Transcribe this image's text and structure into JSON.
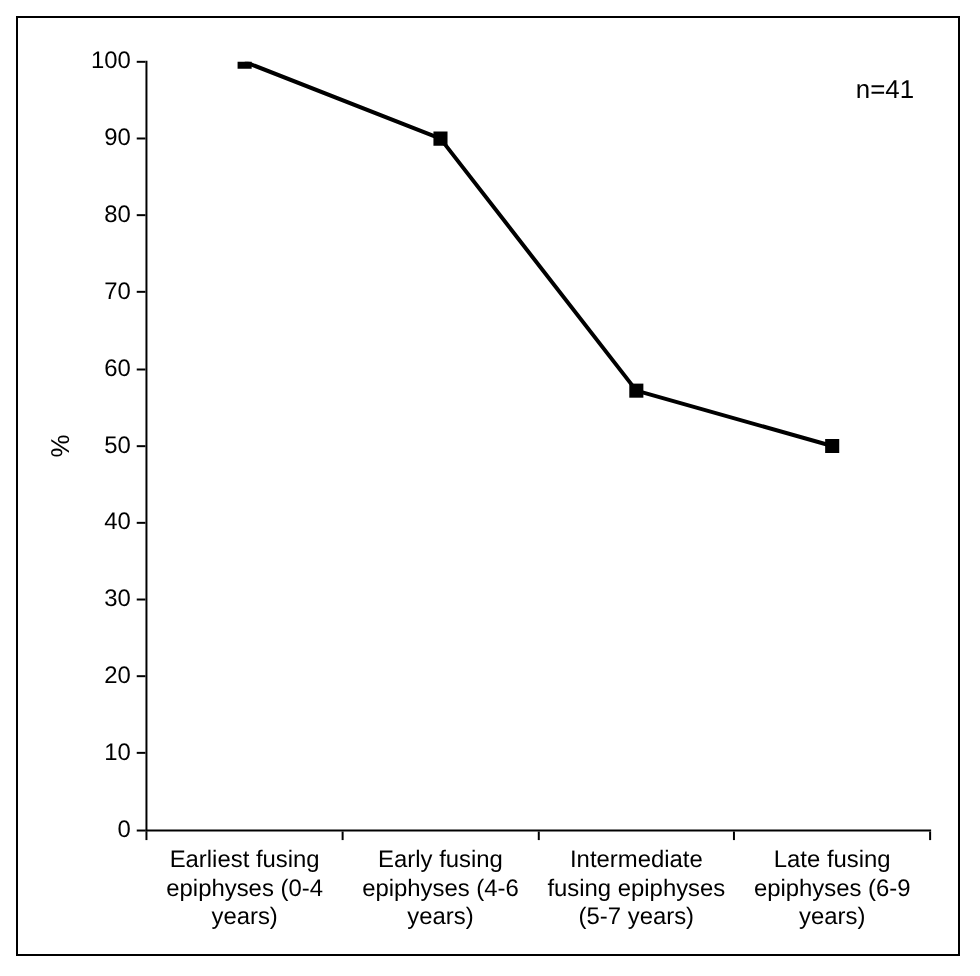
{
  "chart_data": {
    "type": "line",
    "ylabel": "%",
    "categories": [
      "Earliest fusing epiphyses (0-4 years)",
      "Early fusing epiphyses (4-6 years)",
      "Intermediate fusing epiphyses (5-7 years)",
      "Late fusing epiphyses (6-9 years)"
    ],
    "series": [
      {
        "color": "#000000",
        "values": [
          100,
          90,
          57.2,
          50
        ]
      }
    ],
    "ylim": [
      0,
      100
    ],
    "yticks": [
      0,
      10,
      20,
      30,
      40,
      50,
      60,
      70,
      80,
      90,
      100
    ],
    "marker": "square",
    "line_style": "solid",
    "legend": false,
    "annotations": [
      "n=41"
    ]
  }
}
